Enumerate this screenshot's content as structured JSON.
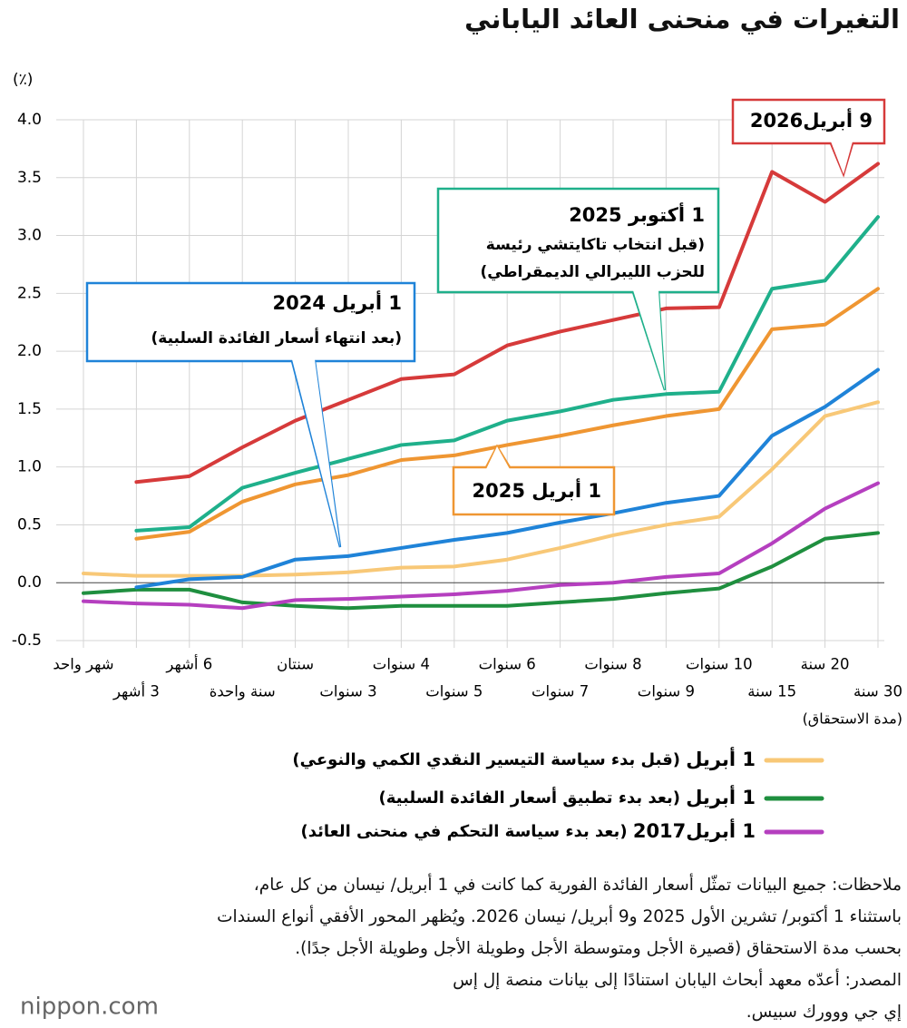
{
  "chart_data": {
    "type": "line",
    "title": "التغيرات في منحنى العائد الياباني",
    "y_unit": "(٪)",
    "x_label": "(مدة الاستحقاق)",
    "categories": [
      "شهر واحد",
      "3 أشهر",
      "6 أشهر",
      "سنة واحدة",
      "سنتان",
      "3 سنوات",
      "4 سنوات",
      "5 سنوات",
      "6 سنوات",
      "7 سنوات",
      "8 سنوات",
      "9 سنوات",
      "10 سنوات",
      "15 سنة",
      "20 سنة",
      "30 سنة"
    ],
    "ylim": [
      -0.5,
      4.0
    ],
    "yticks": [
      -0.5,
      {
        "value": 0,
        "label": "0.0"
      },
      0.5,
      {
        "value": 1,
        "label": "1.0"
      },
      1.5,
      {
        "value": 2,
        "label": "2.0"
      },
      2.5,
      {
        "value": 3,
        "label": "3.0"
      },
      3.5,
      {
        "value": 4,
        "label": "4.0"
      }
    ],
    "grid": true,
    "series": [
      {
        "name": "1 أبريل",
        "notes": [
          "(قبل بدء سياسة التيسير النقدي الكمي والنوعي)"
        ],
        "label_style": "legend",
        "color": "#f8c877",
        "values": [
          0.08,
          0.06,
          0.06,
          0.06,
          0.07,
          0.09,
          0.13,
          0.14,
          0.2,
          0.3,
          0.41,
          0.5,
          0.57,
          0.98,
          1.44,
          1.56
        ]
      },
      {
        "name": "1 أبريل",
        "notes": [
          "(بعد بدء تطبيق أسعار الفائدة السلبية)"
        ],
        "label_style": "legend",
        "color": "#1f8f3f",
        "values": [
          -0.09,
          -0.06,
          -0.06,
          -0.17,
          -0.2,
          -0.22,
          -0.2,
          -0.2,
          -0.2,
          -0.17,
          -0.14,
          -0.09,
          -0.05,
          0.14,
          0.38,
          0.43
        ]
      },
      {
        "name": "1 أبريل2017",
        "notes": [
          "(بعد بدء سياسة التحكم في منحنى العائد)"
        ],
        "label_style": "legend",
        "color": "#b53fbf",
        "values": [
          -0.16,
          -0.18,
          -0.19,
          -0.22,
          -0.15,
          -0.14,
          -0.12,
          -0.1,
          -0.07,
          -0.02,
          0.0,
          0.05,
          0.08,
          0.34,
          0.64,
          0.86
        ]
      },
      {
        "name": "1 أبريل 2024",
        "notes": [
          "(بعد انتهاء أسعار الفائدة السلبية)"
        ],
        "label_style": "callout",
        "color": "#1f83d8",
        "values": [
          null,
          -0.04,
          0.03,
          0.05,
          0.2,
          0.23,
          0.3,
          0.37,
          0.43,
          0.52,
          0.6,
          0.69,
          0.75,
          1.27,
          1.52,
          1.84
        ]
      },
      {
        "name": "1 أبريل 2025",
        "label_style": "callout",
        "color": "#ef9632",
        "values": [
          null,
          0.38,
          0.44,
          0.7,
          0.85,
          0.93,
          1.06,
          1.1,
          1.19,
          1.27,
          1.36,
          1.44,
          1.5,
          2.19,
          2.23,
          2.54
        ]
      },
      {
        "name": "1 أكتوبر 2025",
        "notes": [
          "(قبل انتخاب تاكايتشي رئيسة",
          "للحزب الليبرالي الديمقراطي)"
        ],
        "label_style": "callout",
        "color": "#1fb08b",
        "values": [
          null,
          0.45,
          0.48,
          0.82,
          0.95,
          1.07,
          1.19,
          1.23,
          1.4,
          1.48,
          1.58,
          1.63,
          1.65,
          2.54,
          2.61,
          3.16
        ]
      },
      {
        "name": "9 أبريل2026",
        "label_style": "callout",
        "color": "#d63a3a",
        "values": [
          null,
          0.87,
          0.92,
          1.17,
          1.4,
          1.58,
          1.76,
          1.8,
          2.05,
          2.17,
          2.27,
          2.37,
          2.38,
          3.55,
          3.29,
          3.62
        ]
      }
    ]
  },
  "notes": [
    "ملاحظات: جميع البيانات تمثّل أسعار الفائدة الفورية كما كانت في 1 أبريل/ نيسان من كل عام،",
    "باستثناء 1 أكتوبر/ تشرين الأول 2025 و9 أبريل/ نيسان 2026. ويُظهر المحور الأفقي أنواع السندات",
    "بحسب مدة الاستحقاق (قصيرة الأجل ومتوسطة الأجل وطويلة الأجل وطويلة الأجل جدًا).",
    "المصدر: أعدّه معهد أبحاث اليابان استنادًا إلى بيانات منصة إل إس",
    "إي جي ووورك سبيس."
  ],
  "logo": "nippon.com"
}
